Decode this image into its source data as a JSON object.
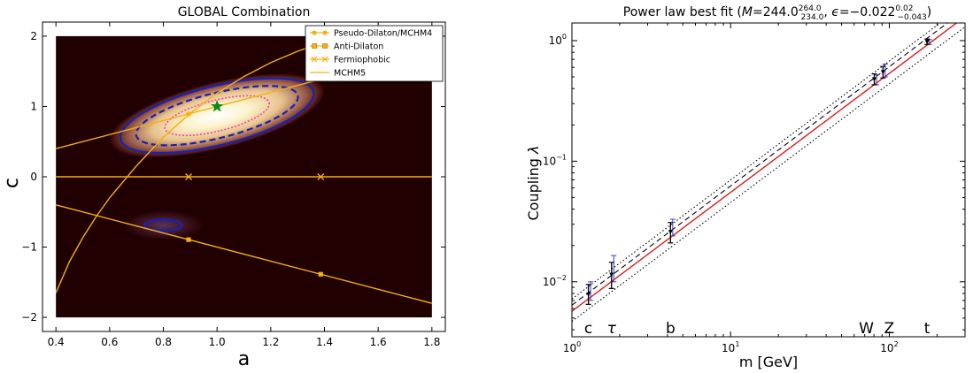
{
  "chart_data": [
    {
      "type": "scatter",
      "title": "GLOBAL Combination",
      "xlabel": "a",
      "ylabel": "c",
      "xlim": [
        0.35,
        1.85
      ],
      "ylim": [
        -2.2,
        2.2
      ],
      "xticks": [
        "0.4",
        "0.6",
        "0.8",
        "1.0",
        "1.2",
        "1.4",
        "1.6",
        "1.8"
      ],
      "xtick_values": [
        0.4,
        0.6,
        0.8,
        1.0,
        1.2,
        1.4,
        1.6,
        1.8
      ],
      "yticks": [
        "−2",
        "−1",
        "0",
        "1",
        "2"
      ],
      "ytick_values": [
        -2,
        -1,
        0,
        1,
        2
      ],
      "plot_region": {
        "x": [
          0.4,
          1.8
        ],
        "y": [
          -2.0,
          2.0
        ]
      },
      "background_color": "#200000",
      "best_fit": {
        "a": 1.0,
        "c": 1.0
      },
      "contours": [
        {
          "name": "main",
          "center": [
            1.0,
            0.87
          ]
        },
        {
          "name": "secondary",
          "center": [
            0.8,
            -0.69
          ]
        }
      ],
      "legend": [
        {
          "label": "Pseudo-Dilaton/MCHM4",
          "marker": "circle",
          "color": "#f5b014"
        },
        {
          "label": "Anti-Dilaton",
          "marker": "square",
          "color": "#f5b014"
        },
        {
          "label": "Fermiophobic",
          "marker": "x",
          "color": "#f5b014"
        },
        {
          "label": "MCHM5",
          "marker": "none",
          "color": "#f5b014"
        }
      ],
      "series": [
        {
          "name": "Pseudo-Dilaton/MCHM4",
          "x": [
            0.4,
            0.894,
            1.8
          ],
          "y": [
            0.4,
            0.894,
            1.8
          ],
          "markers": [
            {
              "x": 0.894,
              "y": 0.894
            }
          ]
        },
        {
          "name": "Anti-Dilaton",
          "x": [
            0.4,
            0.894,
            1.386,
            1.8
          ],
          "y": [
            -0.4,
            -0.894,
            -1.386,
            -1.8
          ],
          "markers": [
            {
              "x": 0.894,
              "y": -0.894
            },
            {
              "x": 1.386,
              "y": -1.386
            }
          ]
        },
        {
          "name": "Fermiophobic",
          "x": [
            0.4,
            1.8
          ],
          "y": [
            0.0,
            0.0
          ],
          "markers": [
            {
              "x": 0.894,
              "y": 0.0
            },
            {
              "x": 1.386,
              "y": 0.0
            }
          ]
        },
        {
          "name": "MCHM5",
          "x": [
            0.4,
            0.45,
            0.5,
            0.55,
            0.6,
            0.7,
            0.8,
            0.9,
            1.0,
            1.1,
            1.2,
            1.3,
            1.4
          ],
          "y": [
            -1.652,
            -1.209,
            -0.866,
            -0.566,
            -0.299,
            0.156,
            0.562,
            0.904,
            1.189,
            1.426,
            1.623,
            1.785,
            1.916
          ]
        }
      ],
      "colors": {
        "line": "#f5b014",
        "star": "#0a8a12",
        "blue": "#1f1fb0",
        "pink": "#ff3aa6"
      }
    },
    {
      "type": "scatter",
      "title": "Power law best fit",
      "title_params": {
        "M": "244.0",
        "M_up": "264.0",
        "M_down": "234.0",
        "eps": "−0.022",
        "eps_up": "0.02",
        "eps_down": "−0.043"
      },
      "xlabel": "m [GeV]",
      "ylabel": "Coupling",
      "ylabel_symbol": "λ",
      "xscale": "log",
      "yscale": "log",
      "xlim": [
        1,
        300
      ],
      "ylim": [
        0.0035,
        1.4
      ],
      "xticks": [
        {
          "base": "10",
          "exp": "0"
        },
        {
          "base": "10",
          "exp": "1"
        },
        {
          "base": "10",
          "exp": "2"
        }
      ],
      "xtick_values": [
        1,
        10,
        100
      ],
      "yticks": [
        {
          "base": "10",
          "exp": "−2"
        },
        {
          "base": "10",
          "exp": "−1"
        },
        {
          "base": "10",
          "exp": "0"
        }
      ],
      "ytick_values": [
        0.01,
        0.1,
        1
      ],
      "particles": [
        {
          "label": "c",
          "m": 1.27,
          "y": 0.0079,
          "err_lo": 0.0065,
          "err_hi": 0.0095,
          "y_alt": 0.0083,
          "alt_lo": 0.007,
          "alt_hi": 0.01
        },
        {
          "label": "τ",
          "m": 1.777,
          "y": 0.0115,
          "err_lo": 0.0088,
          "err_hi": 0.0145,
          "y_alt": 0.0128,
          "alt_lo": 0.01,
          "alt_hi": 0.0165
        },
        {
          "label": "b",
          "m": 4.18,
          "y": 0.026,
          "err_lo": 0.021,
          "err_hi": 0.031,
          "y_alt": 0.028,
          "alt_lo": 0.024,
          "alt_hi": 0.033
        },
        {
          "label": "W",
          "m": 80.4,
          "y": 0.48,
          "err_lo": 0.43,
          "err_hi": 0.53,
          "y_alt": 0.47,
          "alt_lo": 0.43,
          "alt_hi": 0.52
        },
        {
          "label": "Z",
          "m": 91.2,
          "y": 0.55,
          "err_lo": 0.49,
          "err_hi": 0.61,
          "y_alt": 0.56,
          "alt_lo": 0.5,
          "alt_hi": 0.64
        },
        {
          "label": "t",
          "m": 173.0,
          "y": 0.98,
          "err_lo": 0.93,
          "err_hi": 1.03,
          "y_alt": 0.97,
          "alt_lo": 0.93,
          "alt_hi": 1.02
        }
      ],
      "fit_lines": [
        {
          "name": "best-fit",
          "style": "solid",
          "color": "#e01818",
          "x": [
            1,
            300
          ],
          "y": [
            0.0057,
            1.58
          ]
        },
        {
          "name": "sm-reference",
          "style": "dashed",
          "color": "#000000",
          "x": [
            1,
            300
          ],
          "y": [
            0.0064,
            1.8
          ]
        },
        {
          "name": "band-upper",
          "style": "dotted",
          "color": "#000000",
          "x": [
            1,
            300
          ],
          "y": [
            0.0072,
            2.0
          ]
        },
        {
          "name": "band-lower",
          "style": "dotted",
          "color": "#000000",
          "x": [
            1,
            300
          ],
          "y": [
            0.0047,
            1.3
          ]
        }
      ]
    }
  ]
}
